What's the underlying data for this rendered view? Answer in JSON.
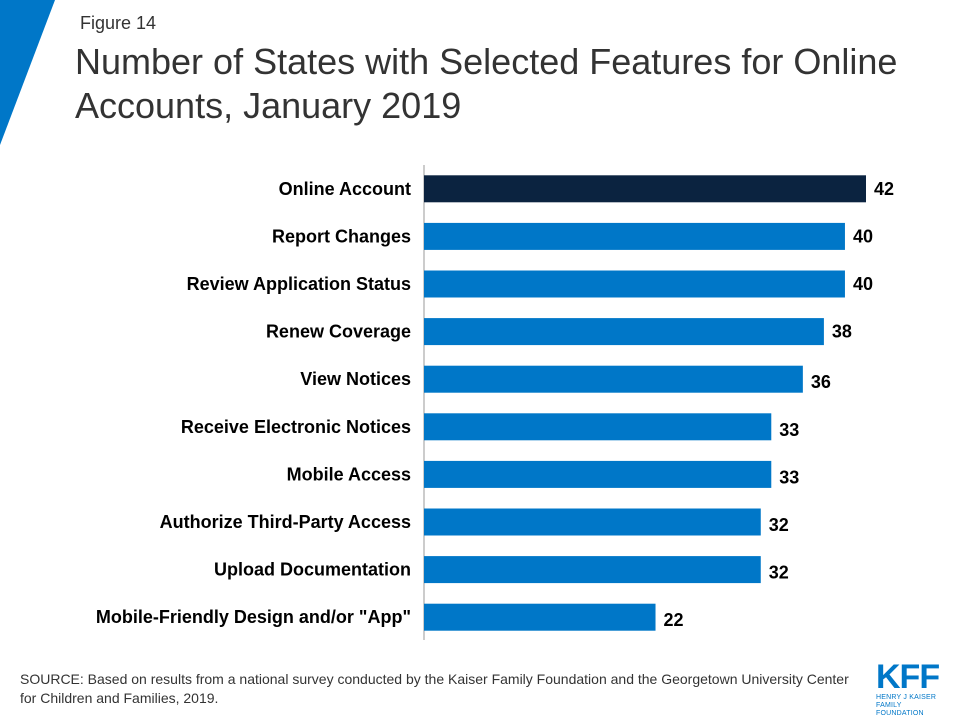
{
  "figure_label": "Figure 14",
  "source": "SOURCE: Based on results from a national survey conducted by the Kaiser Family Foundation and the Georgetown University Center for Children and Families, 2019.",
  "logo": {
    "mark": "KFF",
    "line1": "HENRY J KAISER",
    "line2": "FAMILY FOUNDATION"
  },
  "colors": {
    "accent": "#0077c8",
    "highlight": "#0b2340",
    "axis": "#999999"
  },
  "chart_data": {
    "type": "bar",
    "orientation": "horizontal",
    "title": "Number of States with Selected Features for Online Accounts, January 2019",
    "categories": [
      "Online Account",
      "Report Changes",
      "Review Application Status",
      "Renew Coverage",
      "View Notices",
      "Receive Electronic Notices",
      "Mobile Access",
      "Authorize Third-Party Access",
      "Upload Documentation",
      "Mobile-Friendly Design and/or \"App\""
    ],
    "values": [
      42,
      40,
      40,
      38,
      36,
      33,
      33,
      32,
      32,
      22
    ],
    "data_labels": [
      "42",
      "40",
      "40",
      "38",
      "36",
      "33",
      "33",
      "32",
      "32",
      "22"
    ],
    "highlight_index": 0,
    "xlim": [
      0,
      50
    ],
    "grid": false,
    "legend": "none"
  }
}
